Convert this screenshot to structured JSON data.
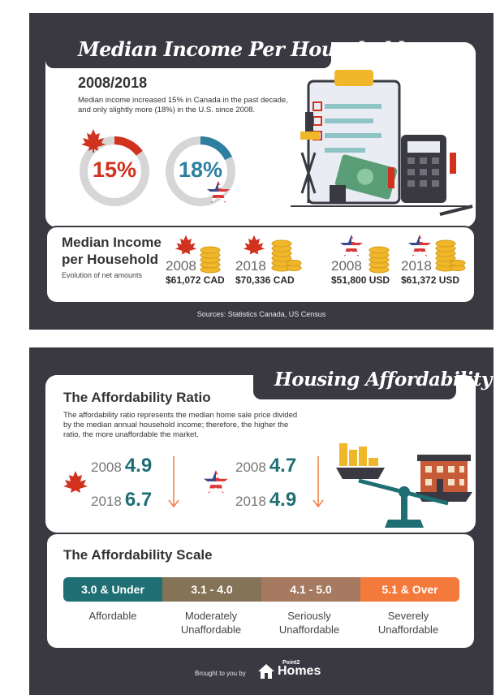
{
  "colors": {
    "panel_bg": "#3a3840",
    "card_bg": "#ffffff",
    "canada_red": "#d0321e",
    "us_blue": "#2e7fa0",
    "teal": "#1e6e74",
    "scale_affordable": "#1f6f74",
    "scale_moderate": "#857358",
    "scale_serious": "#a57a60",
    "scale_severe": "#f47a3c",
    "gold": "#f0b72b"
  },
  "income_panel": {
    "title": "Median Income Per Household",
    "year_range": "2008/2018",
    "description": "Median income increased 15% in Canada in the past decade, and only slightly more (18%) in the U.S. since 2008.",
    "canada_increase": {
      "label": "15%",
      "percent": 15
    },
    "us_increase": {
      "label": "18%",
      "percent": 18
    },
    "median_title": "Median Income per Household",
    "median_subtitle": "Evolution of net amounts",
    "items": [
      {
        "country": "Canada",
        "year": "2008",
        "value": "$61,072 CAD"
      },
      {
        "country": "Canada",
        "year": "2018",
        "value": "$70,336 CAD"
      },
      {
        "country": "USA",
        "year": "2008",
        "value": "$51,800 USD"
      },
      {
        "country": "USA",
        "year": "2018",
        "value": "$61,372 USD"
      }
    ],
    "sources": "Sources: Statistics Canada, US Census"
  },
  "housing_panel": {
    "title": "Housing Affordability",
    "ratio_title": "The Affordability Ratio",
    "ratio_description": "The affordability ratio represents the median home sale price divided by the median annual household income; therefore, the higher the ratio, the more unaffordable the market.",
    "canada": [
      {
        "year": "2008",
        "value": "4.9"
      },
      {
        "year": "2018",
        "value": "6.7"
      }
    ],
    "usa": [
      {
        "year": "2008",
        "value": "4.7"
      },
      {
        "year": "2018",
        "value": "4.9"
      }
    ],
    "scale_title": "The Affordability Scale",
    "scale": [
      {
        "range": "3.0 & Under",
        "label": "Affordable"
      },
      {
        "range": "3.1 - 4.0",
        "label": "Moderately Unaffordable"
      },
      {
        "range": "4.1 - 5.0",
        "label": "Seriously Unaffordable"
      },
      {
        "range": "5.1 & Over",
        "label": "Severely Unaffordable"
      }
    ],
    "brought_by": "Brought to you by",
    "logo_small": "Point2",
    "logo_main": "Homes"
  }
}
